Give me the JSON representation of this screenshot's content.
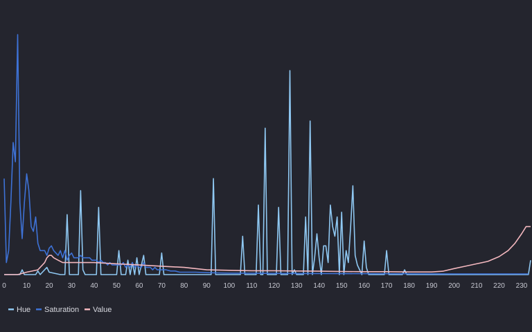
{
  "chart_data": {
    "type": "line",
    "title": "",
    "xlabel": "",
    "ylabel": "",
    "xlim": [
      0,
      233
    ],
    "ylim": [
      0,
      1
    ],
    "grid": false,
    "legend_position": "bottom-left",
    "x_ticks": [
      0,
      10,
      20,
      30,
      40,
      50,
      60,
      70,
      80,
      90,
      100,
      110,
      120,
      130,
      140,
      150,
      160,
      170,
      180,
      190,
      200,
      210,
      220,
      230
    ],
    "series": [
      {
        "name": "Hue",
        "color": "#8fc8f2",
        "points": [
          [
            0,
            0
          ],
          [
            7,
            0
          ],
          [
            8,
            0.02
          ],
          [
            9,
            0
          ],
          [
            14,
            0
          ],
          [
            15,
            0.015
          ],
          [
            16,
            0
          ],
          [
            19,
            0.03
          ],
          [
            20,
            0.01
          ],
          [
            25,
            0
          ],
          [
            27,
            0
          ],
          [
            28,
            0.25
          ],
          [
            29,
            0
          ],
          [
            33,
            0
          ],
          [
            34,
            0.35
          ],
          [
            35,
            0.02
          ],
          [
            36,
            0
          ],
          [
            41,
            0
          ],
          [
            42,
            0.28
          ],
          [
            43,
            0
          ],
          [
            50,
            0
          ],
          [
            51,
            0.1
          ],
          [
            52,
            0
          ],
          [
            54,
            0
          ],
          [
            55,
            0.06
          ],
          [
            56,
            0
          ],
          [
            57,
            0.05
          ],
          [
            58,
            0
          ],
          [
            59,
            0.07
          ],
          [
            60,
            0
          ],
          [
            62,
            0.08
          ],
          [
            63,
            0
          ],
          [
            69,
            0
          ],
          [
            70,
            0.09
          ],
          [
            71,
            0
          ],
          [
            91,
            0
          ],
          [
            92,
            0
          ],
          [
            93,
            0.4
          ],
          [
            94,
            0
          ],
          [
            105,
            0
          ],
          [
            106,
            0.16
          ],
          [
            107,
            0
          ],
          [
            111,
            0
          ],
          [
            112,
            0
          ],
          [
            113,
            0.29
          ],
          [
            114,
            0
          ],
          [
            115,
            0
          ],
          [
            116,
            0.61
          ],
          [
            117,
            0
          ],
          [
            121,
            0
          ],
          [
            122,
            0.28
          ],
          [
            123,
            0
          ],
          [
            126,
            0
          ],
          [
            127,
            0.85
          ],
          [
            128,
            0
          ],
          [
            129,
            0.02
          ],
          [
            130,
            0
          ],
          [
            133,
            0
          ],
          [
            134,
            0.24
          ],
          [
            135,
            0
          ],
          [
            136,
            0.64
          ],
          [
            137,
            0
          ],
          [
            138,
            0.07
          ],
          [
            139,
            0.17
          ],
          [
            140,
            0.07
          ],
          [
            141,
            0
          ],
          [
            142,
            0.12
          ],
          [
            143,
            0.12
          ],
          [
            144,
            0.05
          ],
          [
            145,
            0.29
          ],
          [
            146,
            0.2
          ],
          [
            147,
            0.16
          ],
          [
            148,
            0.24
          ],
          [
            149,
            0
          ],
          [
            150,
            0.26
          ],
          [
            151,
            0
          ],
          [
            152,
            0.1
          ],
          [
            153,
            0.05
          ],
          [
            154,
            0.2
          ],
          [
            155,
            0.37
          ],
          [
            156,
            0.08
          ],
          [
            157,
            0.04
          ],
          [
            158,
            0.02
          ],
          [
            159,
            0
          ],
          [
            160,
            0.14
          ],
          [
            161,
            0.03
          ],
          [
            162,
            0
          ],
          [
            169,
            0
          ],
          [
            170,
            0.1
          ],
          [
            171,
            0
          ],
          [
            177,
            0
          ],
          [
            178,
            0.02
          ],
          [
            179,
            0
          ],
          [
            233,
            0
          ],
          [
            234,
            0.06
          ]
        ]
      },
      {
        "name": "Saturation",
        "color": "#3e72d6",
        "points": [
          [
            0,
            0.4
          ],
          [
            1,
            0.05
          ],
          [
            2,
            0.1
          ],
          [
            3,
            0.3
          ],
          [
            4,
            0.55
          ],
          [
            5,
            0.47
          ],
          [
            6,
            1.0
          ],
          [
            7,
            0.3
          ],
          [
            8,
            0.15
          ],
          [
            9,
            0.3
          ],
          [
            10,
            0.42
          ],
          [
            11,
            0.35
          ],
          [
            12,
            0.2
          ],
          [
            13,
            0.18
          ],
          [
            14,
            0.24
          ],
          [
            15,
            0.13
          ],
          [
            16,
            0.1
          ],
          [
            17,
            0.1
          ],
          [
            18,
            0.1
          ],
          [
            19,
            0.08
          ],
          [
            20,
            0.11
          ],
          [
            21,
            0.12
          ],
          [
            22,
            0.1
          ],
          [
            23,
            0.09
          ],
          [
            24,
            0.08
          ],
          [
            25,
            0.1
          ],
          [
            26,
            0.07
          ],
          [
            27,
            0.1
          ],
          [
            28,
            0.06
          ],
          [
            29,
            0.08
          ],
          [
            30,
            0.09
          ],
          [
            31,
            0.07
          ],
          [
            32,
            0.07
          ],
          [
            33,
            0.07
          ],
          [
            34,
            0.08
          ],
          [
            35,
            0.07
          ],
          [
            36,
            0.07
          ],
          [
            37,
            0.07
          ],
          [
            38,
            0.07
          ],
          [
            39,
            0.06
          ],
          [
            40,
            0.06
          ],
          [
            41,
            0.06
          ],
          [
            42,
            0.05
          ],
          [
            43,
            0.06
          ],
          [
            44,
            0.05
          ],
          [
            45,
            0.05
          ],
          [
            46,
            0.04
          ],
          [
            47,
            0.05
          ],
          [
            48,
            0.04
          ],
          [
            49,
            0.04
          ],
          [
            50,
            0.04
          ],
          [
            51,
            0.04
          ],
          [
            52,
            0.04
          ],
          [
            53,
            0.05
          ],
          [
            54,
            0.03
          ],
          [
            55,
            0.04
          ],
          [
            56,
            0.03
          ],
          [
            57,
            0.05
          ],
          [
            58,
            0.03
          ],
          [
            59,
            0.04
          ],
          [
            60,
            0.03
          ],
          [
            61,
            0.03
          ],
          [
            62,
            0.05
          ],
          [
            63,
            0.03
          ],
          [
            64,
            0.03
          ],
          [
            65,
            0.03
          ],
          [
            66,
            0.02
          ],
          [
            67,
            0.03
          ],
          [
            68,
            0.02
          ],
          [
            69,
            0.02
          ],
          [
            70,
            0.02
          ],
          [
            72,
            0.02
          ],
          [
            74,
            0.015
          ],
          [
            76,
            0.015
          ],
          [
            78,
            0.01
          ],
          [
            80,
            0.01
          ],
          [
            85,
            0.01
          ],
          [
            90,
            0.008
          ],
          [
            100,
            0.006
          ],
          [
            120,
            0.005
          ],
          [
            150,
            0.004
          ],
          [
            200,
            0.003
          ],
          [
            233,
            0.003
          ]
        ]
      },
      {
        "name": "Value",
        "color": "#f4b8bf",
        "points": [
          [
            0,
            0
          ],
          [
            6,
            0
          ],
          [
            10,
            0.01
          ],
          [
            15,
            0.02
          ],
          [
            18,
            0.05
          ],
          [
            19,
            0.07
          ],
          [
            20,
            0.08
          ],
          [
            21,
            0.08
          ],
          [
            22,
            0.07
          ],
          [
            24,
            0.06
          ],
          [
            26,
            0.05
          ],
          [
            30,
            0.05
          ],
          [
            40,
            0.05
          ],
          [
            50,
            0.045
          ],
          [
            60,
            0.04
          ],
          [
            70,
            0.035
          ],
          [
            80,
            0.03
          ],
          [
            90,
            0.02
          ],
          [
            100,
            0.018
          ],
          [
            110,
            0.016
          ],
          [
            120,
            0.016
          ],
          [
            130,
            0.015
          ],
          [
            140,
            0.014
          ],
          [
            150,
            0.013
          ],
          [
            160,
            0.012
          ],
          [
            170,
            0.012
          ],
          [
            180,
            0.011
          ],
          [
            190,
            0.011
          ],
          [
            195,
            0.014
          ],
          [
            200,
            0.025
          ],
          [
            205,
            0.035
          ],
          [
            210,
            0.045
          ],
          [
            215,
            0.055
          ],
          [
            220,
            0.075
          ],
          [
            224,
            0.1
          ],
          [
            227,
            0.13
          ],
          [
            230,
            0.17
          ],
          [
            232,
            0.2
          ],
          [
            234,
            0.2
          ]
        ]
      }
    ]
  }
}
